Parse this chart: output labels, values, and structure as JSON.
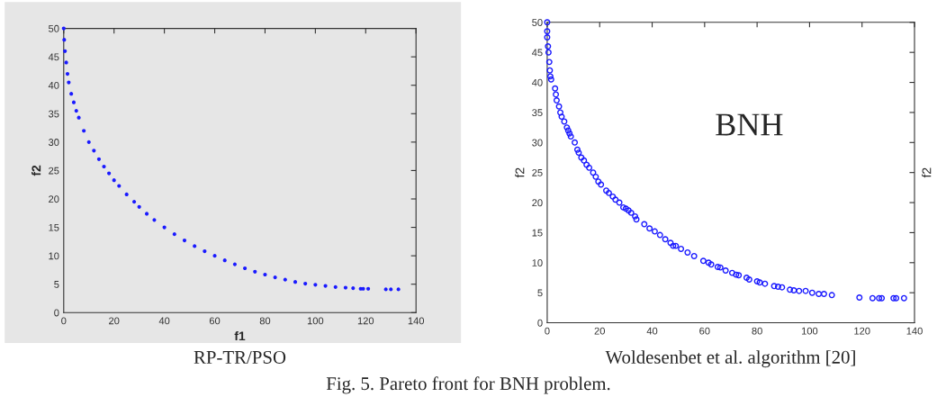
{
  "chart_data": [
    {
      "type": "scatter",
      "xlabel": "f1",
      "ylabel": "f2",
      "xlim": [
        0,
        140
      ],
      "ylim": [
        0,
        50
      ],
      "xticks": [
        0,
        20,
        40,
        60,
        80,
        100,
        120,
        140
      ],
      "yticks": [
        0,
        5,
        10,
        15,
        20,
        25,
        30,
        35,
        40,
        45,
        50
      ],
      "grid": false,
      "legend": false,
      "marker": "circle",
      "annotations": [
        "RP-TR/PSO",
        "Fig. 5. Pareto front for BNH problem."
      ],
      "series": [
        {
          "color": "#1a1aff",
          "x": [
            0,
            0.2,
            0.5,
            1,
            1.5,
            2,
            3,
            4,
            5,
            6,
            8,
            10,
            12,
            14,
            16,
            18,
            20,
            22,
            25,
            28,
            30,
            33,
            36,
            40,
            44,
            48,
            52,
            56,
            60,
            64,
            68,
            72,
            76,
            80,
            84,
            88,
            92,
            96,
            100,
            104,
            108,
            112,
            115,
            118,
            119,
            121,
            128,
            130,
            133
          ],
          "values": [
            50,
            48,
            46,
            44,
            42,
            40.5,
            38.5,
            37,
            35.5,
            34.3,
            32,
            30,
            28.5,
            27,
            25.7,
            24.5,
            23.3,
            22.3,
            20.8,
            19.5,
            18.6,
            17.4,
            16.3,
            15,
            13.8,
            12.7,
            11.7,
            10.8,
            10,
            9.2,
            8.5,
            7.8,
            7.2,
            6.7,
            6.2,
            5.8,
            5.4,
            5.1,
            4.9,
            4.7,
            4.5,
            4.4,
            4.3,
            4.2,
            4.2,
            4.2,
            4.1,
            4.1,
            4.1
          ]
        }
      ]
    },
    {
      "type": "scatter",
      "ylabel": "f2",
      "y2label": "f2",
      "xlim": [
        0,
        140
      ],
      "ylim": [
        0,
        50
      ],
      "xticks": [
        0,
        20,
        40,
        60,
        80,
        100,
        120,
        140
      ],
      "yticks": [
        0,
        5,
        10,
        15,
        20,
        25,
        30,
        35,
        40,
        45,
        50
      ],
      "grid": false,
      "legend": false,
      "marker": "circle",
      "annotations": [
        "BNH",
        "Woldesenbet et al. algorithm [20]"
      ],
      "series": [
        {
          "color": "#1a1aff",
          "x": [
            0,
            0,
            0,
            0.3,
            0.5,
            0.8,
            1,
            1.2,
            1.5,
            3,
            3.3,
            3.6,
            4.5,
            5,
            5.5,
            6.5,
            7.5,
            8,
            8.5,
            9,
            10.5,
            11.5,
            12,
            13,
            14,
            15,
            16,
            17.5,
            18.5,
            19.5,
            20.5,
            22.5,
            23.5,
            25,
            26,
            27.5,
            29,
            30,
            31,
            32,
            33.5,
            34,
            37,
            39,
            41,
            43,
            45,
            47,
            48,
            49,
            51,
            53.5,
            56,
            59.5,
            61.5,
            62.5,
            65,
            66,
            68,
            70.5,
            72,
            73,
            76,
            77,
            80,
            81,
            83,
            86.5,
            88,
            89.5,
            92.5,
            94,
            96,
            98.5,
            101,
            103.5,
            105.5,
            108.5,
            119,
            124,
            126.5,
            127.5,
            132,
            133,
            136
          ],
          "values": [
            50,
            48.5,
            47.5,
            46,
            45,
            43.4,
            42,
            41,
            40.5,
            39,
            38,
            37,
            36,
            35,
            34.3,
            33.5,
            32.5,
            32,
            31.5,
            31,
            30,
            28.8,
            28.3,
            27.5,
            27,
            26.3,
            25.8,
            25,
            24.3,
            23.5,
            23,
            22,
            21.6,
            21,
            20.5,
            20,
            19.2,
            19,
            18.7,
            18.3,
            17.7,
            17.2,
            16.4,
            15.7,
            15.2,
            14.6,
            13.9,
            13.3,
            12.8,
            12.8,
            12.3,
            11.7,
            11.1,
            10.3,
            10,
            9.7,
            9.3,
            9.2,
            8.7,
            8.3,
            8,
            7.9,
            7.5,
            7.2,
            6.9,
            6.7,
            6.5,
            6.1,
            6,
            5.9,
            5.5,
            5.4,
            5.3,
            5.3,
            5,
            4.8,
            4.8,
            4.6,
            4.2,
            4.1,
            4.1,
            4.1,
            4.1,
            4.1,
            4.1
          ]
        }
      ]
    }
  ]
}
